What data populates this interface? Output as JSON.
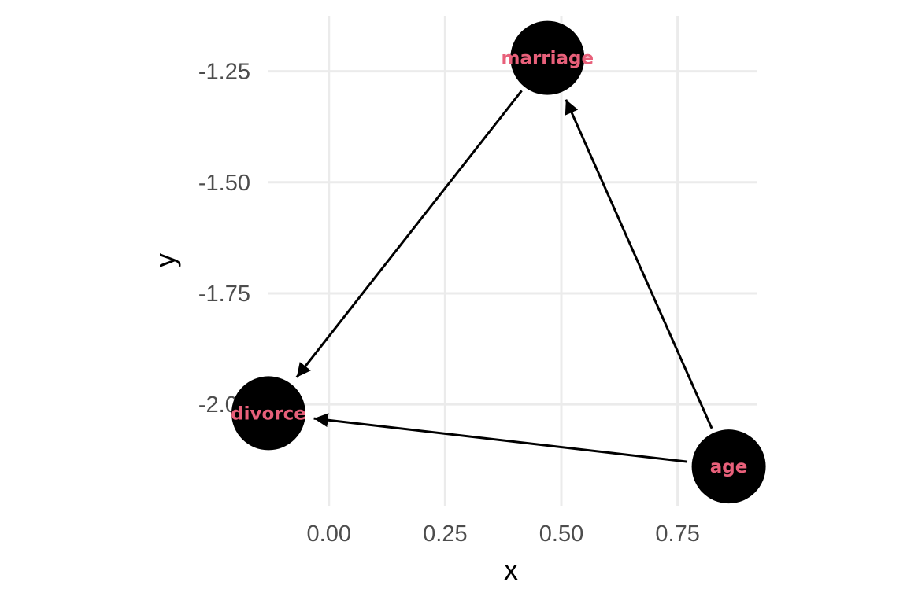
{
  "chart_data": {
    "type": "scatter",
    "title": "",
    "xlabel": "x",
    "ylabel": "y",
    "xlim": [
      -0.13,
      0.92
    ],
    "ylim": [
      -2.23,
      -1.125
    ],
    "x_ticks": [
      0.0,
      0.25,
      0.5,
      0.75
    ],
    "x_tick_labels": [
      "0.00",
      "0.25",
      "0.50",
      "0.75"
    ],
    "y_ticks": [
      -1.25,
      -1.5,
      -1.75,
      -2.0
    ],
    "y_tick_labels": [
      "-1.25",
      "-1.50",
      "-1.75",
      "-2.00"
    ],
    "grid": true,
    "nodes": [
      {
        "name": "marriage",
        "x": 0.47,
        "y": -1.22
      },
      {
        "name": "divorce",
        "x": -0.13,
        "y": -2.02
      },
      {
        "name": "age",
        "x": 0.86,
        "y": -2.14
      }
    ],
    "edges": [
      {
        "from": "marriage",
        "to": "divorce"
      },
      {
        "from": "age",
        "to": "divorce"
      },
      {
        "from": "age",
        "to": "marriage"
      }
    ]
  },
  "colors": {
    "node_fill": "#000000",
    "node_label": "#e8607a",
    "edge": "#000000",
    "grid": "#ebebeb",
    "tick_text": "#4d4d4d"
  }
}
